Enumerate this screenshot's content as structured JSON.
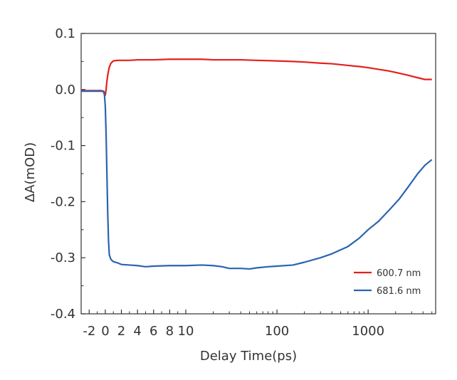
{
  "chart_data": {
    "type": "line",
    "title": "",
    "xlabel": "Delay Time(ps)",
    "ylabel": "ΔA(mOD)",
    "x_scale": "linear below 10 ps, log above 10 ps",
    "xlim": [
      -3,
      5500
    ],
    "ylim": [
      -0.4,
      0.1
    ],
    "x_tick_labels": [
      {
        "value": -2,
        "label": "-2"
      },
      {
        "value": 0,
        "label": "0"
      },
      {
        "value": 2,
        "label": "2"
      },
      {
        "value": 4,
        "label": "4"
      },
      {
        "value": 6,
        "label": "6"
      },
      {
        "value": 8,
        "label": "8"
      },
      {
        "value": 10,
        "label": "10"
      },
      {
        "value": 100,
        "label": "100"
      },
      {
        "value": 1000,
        "label": "1000"
      }
    ],
    "y_tick_labels": [
      {
        "value": 0.1,
        "label": "0.1"
      },
      {
        "value": 0.0,
        "label": "0.0"
      },
      {
        "value": -0.1,
        "label": "-0.1"
      },
      {
        "value": -0.2,
        "label": "-0.2"
      },
      {
        "value": -0.3,
        "label": "-0.3"
      },
      {
        "value": -0.4,
        "label": "-0.4"
      }
    ],
    "grid": false,
    "legend_position": "bottom-right",
    "series": [
      {
        "name": "600.7 nm",
        "color": "#e3211c",
        "points": [
          [
            -3,
            -0.002
          ],
          [
            -1.5,
            -0.002
          ],
          [
            -0.5,
            -0.002
          ],
          [
            -0.2,
            -0.003
          ],
          [
            0,
            -0.01
          ],
          [
            0.1,
            0.0
          ],
          [
            0.2,
            0.015
          ],
          [
            0.35,
            0.03
          ],
          [
            0.5,
            0.04
          ],
          [
            0.7,
            0.047
          ],
          [
            1,
            0.051
          ],
          [
            1.5,
            0.052
          ],
          [
            2,
            0.052
          ],
          [
            3,
            0.052
          ],
          [
            4,
            0.053
          ],
          [
            5,
            0.053
          ],
          [
            6,
            0.053
          ],
          [
            8,
            0.054
          ],
          [
            10,
            0.054
          ],
          [
            15,
            0.054
          ],
          [
            20,
            0.053
          ],
          [
            30,
            0.053
          ],
          [
            40,
            0.053
          ],
          [
            60,
            0.052
          ],
          [
            100,
            0.051
          ],
          [
            150,
            0.05
          ],
          [
            200,
            0.049
          ],
          [
            300,
            0.047
          ],
          [
            400,
            0.046
          ],
          [
            600,
            0.043
          ],
          [
            800,
            0.041
          ],
          [
            1000,
            0.039
          ],
          [
            1300,
            0.036
          ],
          [
            1700,
            0.033
          ],
          [
            2200,
            0.029
          ],
          [
            2800,
            0.025
          ],
          [
            3500,
            0.021
          ],
          [
            4200,
            0.018
          ],
          [
            5000,
            0.018
          ]
        ]
      },
      {
        "name": "681.6 nm",
        "color": "#2a64b0",
        "points": [
          [
            -3,
            -0.003
          ],
          [
            -1.5,
            -0.003
          ],
          [
            -0.5,
            -0.003
          ],
          [
            -0.2,
            -0.004
          ],
          [
            -0.1,
            -0.01
          ],
          [
            0,
            -0.03
          ],
          [
            0.1,
            -0.08
          ],
          [
            0.2,
            -0.15
          ],
          [
            0.3,
            -0.22
          ],
          [
            0.4,
            -0.27
          ],
          [
            0.5,
            -0.295
          ],
          [
            0.7,
            -0.303
          ],
          [
            1,
            -0.307
          ],
          [
            1.5,
            -0.309
          ],
          [
            2,
            -0.312
          ],
          [
            3,
            -0.313
          ],
          [
            4,
            -0.314
          ],
          [
            5,
            -0.316
          ],
          [
            6,
            -0.315
          ],
          [
            8,
            -0.314
          ],
          [
            10,
            -0.314
          ],
          [
            15,
            -0.313
          ],
          [
            20,
            -0.314
          ],
          [
            25,
            -0.316
          ],
          [
            30,
            -0.319
          ],
          [
            40,
            -0.319
          ],
          [
            50,
            -0.32
          ],
          [
            60,
            -0.318
          ],
          [
            80,
            -0.316
          ],
          [
            100,
            -0.315
          ],
          [
            150,
            -0.313
          ],
          [
            200,
            -0.308
          ],
          [
            300,
            -0.3
          ],
          [
            400,
            -0.293
          ],
          [
            600,
            -0.28
          ],
          [
            800,
            -0.265
          ],
          [
            1000,
            -0.25
          ],
          [
            1300,
            -0.235
          ],
          [
            1700,
            -0.215
          ],
          [
            2200,
            -0.195
          ],
          [
            2800,
            -0.172
          ],
          [
            3500,
            -0.15
          ],
          [
            4200,
            -0.135
          ],
          [
            5000,
            -0.125
          ]
        ]
      }
    ]
  }
}
